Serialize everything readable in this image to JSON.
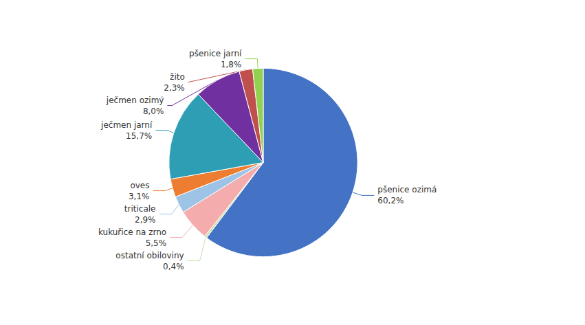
{
  "chart_data": {
    "type": "pie",
    "categories": [
      "pšenice ozimá",
      "ostatní obiloviny",
      "kukuřice na zrno",
      "triticale",
      "oves",
      "ječmen jarní",
      "ječmen ozimý",
      "žito",
      "pšenice jarní"
    ],
    "values": [
      60.2,
      0.4,
      5.5,
      2.9,
      3.1,
      15.7,
      8.0,
      2.3,
      1.8
    ],
    "value_labels": [
      "60,2%",
      "0,4%",
      "5,5%",
      "2,9%",
      "3,1%",
      "15,7%",
      "8,0%",
      "2,3%",
      "1,8%"
    ],
    "colors": [
      "#4472C4",
      "#C6E0B4",
      "#F4ACAC",
      "#9DC3E6",
      "#ED7D31",
      "#2E9EB5",
      "#7030A0",
      "#C0504D",
      "#92D050"
    ],
    "data_labels": true
  }
}
